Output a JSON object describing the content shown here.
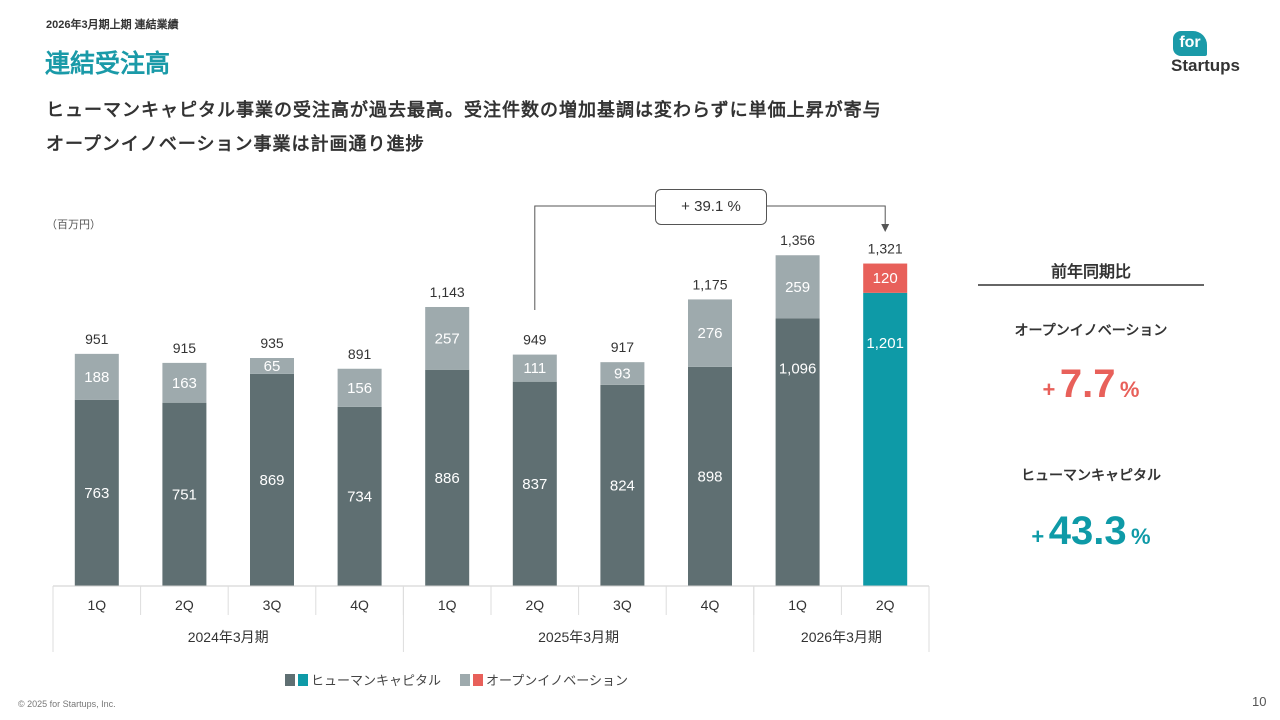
{
  "header": {
    "subtitle": "2026年3月期上期 連結業績",
    "title": "連結受注高",
    "message_line1": "ヒューマンキャピタル事業の受注高が過去最高。受注件数の増加基調は変わらずに単価上昇が寄与",
    "message_line2": "オープンイノベーション事業は計画通り進捗",
    "logo_text": "for Startups"
  },
  "chart_data": {
    "type": "bar",
    "stacked": true,
    "unit": "（百万円）",
    "categories": [
      "1Q",
      "2Q",
      "3Q",
      "4Q",
      "1Q",
      "2Q",
      "3Q",
      "4Q",
      "1Q",
      "2Q"
    ],
    "periods": [
      {
        "label": "2024年3月期",
        "span": 4
      },
      {
        "label": "2025年3月期",
        "span": 4
      },
      {
        "label": "2026年3月期",
        "span": 2
      }
    ],
    "series": [
      {
        "name": "ヒューマンキャピタル",
        "values": [
          763,
          751,
          869,
          734,
          886,
          837,
          824,
          898,
          1096,
          1201
        ],
        "labels": [
          "763",
          "751",
          "869",
          "734",
          "886",
          "837",
          "824",
          "898",
          "1,096",
          "1,201"
        ]
      },
      {
        "name": "オープンイノベーション",
        "values": [
          188,
          163,
          65,
          156,
          257,
          111,
          93,
          276,
          259,
          120
        ],
        "labels": [
          "188",
          "163",
          "65",
          "156",
          "257",
          "111",
          "93",
          "276",
          "259",
          "120"
        ]
      }
    ],
    "totals": [
      "951",
      "915",
      "935",
      "891",
      "1,143",
      "949",
      "917",
      "1,175",
      "1,356",
      "1,321"
    ],
    "ylim": [
      0,
      1356
    ],
    "annotation": "+ 39.1 %",
    "colors": {
      "hc": "#5f6f72",
      "oi": "#9eaaad",
      "hc_highlight": "#0e9aa7",
      "oi_highlight": "#e8605a"
    }
  },
  "legend": {
    "hc": "ヒューマンキャピタル",
    "oi": "オープンイノベーション"
  },
  "yoy": {
    "title": "前年同期比",
    "oi_label": "オープンイノベーション",
    "oi_sign": "+",
    "oi_value": "7.7",
    "oi_unit": "%",
    "hc_label": "ヒューマンキャピタル",
    "hc_sign": "+",
    "hc_value": "43.3",
    "hc_unit": "%"
  },
  "footer": {
    "copyright": "© 2025 for Startups, Inc.",
    "page": "10"
  }
}
